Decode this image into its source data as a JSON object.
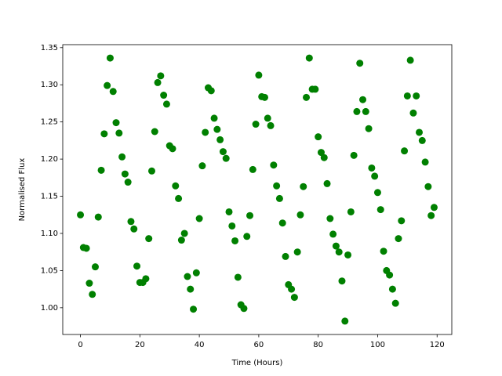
{
  "chart_data": {
    "type": "scatter",
    "xlabel": "Time (Hours)",
    "ylabel": "Normalised Flux",
    "color": "green",
    "x": [
      0,
      1,
      2,
      3,
      4,
      5,
      6,
      7,
      8,
      9,
      10,
      11,
      12,
      13,
      14,
      15,
      16,
      17,
      18,
      19,
      20,
      21,
      22,
      23,
      24,
      25,
      26,
      27,
      28,
      29,
      30,
      31,
      32,
      33,
      34,
      35,
      36,
      37,
      38,
      39,
      40,
      41,
      42,
      43,
      44,
      45,
      46,
      47,
      48,
      49,
      50,
      51,
      52,
      53,
      54,
      55,
      56,
      57,
      58,
      59,
      60,
      61,
      62,
      63,
      64,
      65,
      66,
      67,
      68,
      69,
      70,
      71,
      72,
      73,
      74,
      75,
      76,
      77,
      78,
      79,
      80,
      81,
      82,
      83,
      84,
      85,
      86,
      87,
      88,
      89,
      90,
      91,
      92,
      93,
      94,
      95,
      96,
      97,
      98,
      99,
      100,
      101,
      102,
      103,
      104,
      105,
      106,
      107,
      108,
      109,
      110,
      111,
      112,
      113,
      114,
      115,
      116,
      117,
      118,
      119
    ],
    "values": [
      1.125,
      1.081,
      1.08,
      1.033,
      1.018,
      1.055,
      1.122,
      1.185,
      1.234,
      1.299,
      1.336,
      1.291,
      1.249,
      1.235,
      1.203,
      1.18,
      1.169,
      1.116,
      1.106,
      1.056,
      1.034,
      1.034,
      1.039,
      1.093,
      1.184,
      1.237,
      1.303,
      1.312,
      1.286,
      1.274,
      1.218,
      1.214,
      1.164,
      1.147,
      1.091,
      1.1,
      1.042,
      1.025,
      0.998,
      1.047,
      1.12,
      1.191,
      1.236,
      1.296,
      1.292,
      1.255,
      1.24,
      1.226,
      1.21,
      1.201,
      1.129,
      1.11,
      1.09,
      1.041,
      1.004,
      0.999,
      1.096,
      1.124,
      1.186,
      1.247,
      1.313,
      1.284,
      1.283,
      1.255,
      1.245,
      1.192,
      1.164,
      1.147,
      1.114,
      1.069,
      1.031,
      1.025,
      1.014,
      1.075,
      1.125,
      1.163,
      1.283,
      1.336,
      1.294,
      1.294,
      1.23,
      1.209,
      1.202,
      1.167,
      1.12,
      1.099,
      1.083,
      1.075,
      1.036,
      0.982,
      1.071,
      1.129,
      1.205,
      1.264,
      1.329,
      1.28,
      1.264,
      1.241,
      1.188,
      1.177,
      1.155,
      1.132,
      1.076,
      1.05,
      1.044,
      1.025,
      1.006,
      1.093,
      1.117,
      1.211,
      1.285,
      1.333,
      1.262,
      1.285,
      1.236,
      1.225,
      1.196,
      1.163,
      1.124,
      1.135
    ],
    "xlim": [
      -5.95,
      124.95
    ],
    "xticks": [
      0,
      20,
      40,
      60,
      80,
      100,
      120
    ],
    "ylim": [
      0.964,
      1.354
    ],
    "yticks": [
      {
        "value": 1.0,
        "label": "1.00"
      },
      {
        "value": 1.05,
        "label": "1.05"
      },
      {
        "value": 1.1,
        "label": "1.10"
      },
      {
        "value": 1.15,
        "label": "1.15"
      },
      {
        "value": 1.2,
        "label": "1.20"
      },
      {
        "value": 1.25,
        "label": "1.25"
      },
      {
        "value": 1.3,
        "label": "1.30"
      },
      {
        "value": 1.35,
        "label": "1.35"
      }
    ],
    "grid": false
  }
}
